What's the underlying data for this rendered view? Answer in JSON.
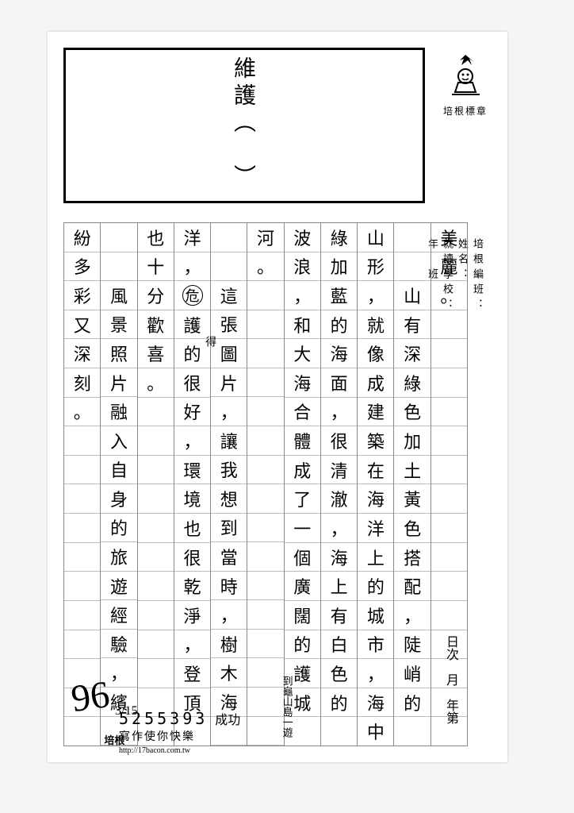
{
  "title": "維護（　）",
  "stamp_label": "培根標章",
  "header_labels": [
    "培根編班：",
    "姓名：",
    "就讀學校：",
    "年　班"
  ],
  "side_date": "日次　月　年第",
  "columns": [
    [
      "美",
      "麗",
      "。",
      "",
      "",
      "",
      "",
      "",
      "",
      "",
      "",
      "",
      "",
      "",
      "",
      "",
      "",
      ""
    ],
    [
      "",
      "",
      "山",
      "有",
      "深",
      "綠",
      "色",
      "加",
      "土",
      "黃",
      "色",
      "搭",
      "配",
      "，",
      "陡",
      "峭",
      "的",
      ""
    ],
    [
      "山",
      "形",
      "，",
      "就",
      "像",
      "成",
      "建",
      "築",
      "在",
      "海",
      "洋",
      "上",
      "的",
      "城",
      "市",
      "，",
      "海",
      "中"
    ],
    [
      "綠",
      "加",
      "藍",
      "的",
      "海",
      "面",
      "，",
      "很",
      "清",
      "澈",
      "，",
      "海",
      "上",
      "有",
      "白",
      "色",
      "的",
      ""
    ],
    [
      "波",
      "浪",
      "，",
      "和",
      "大",
      "海",
      "合",
      "體",
      "成",
      "了",
      "一",
      "個",
      "廣",
      "闊",
      "的",
      "護",
      "城",
      ""
    ],
    [
      "河",
      "。",
      "",
      "",
      "",
      "",
      "",
      "",
      "",
      "",
      "",
      "",
      "",
      "",
      "",
      "",
      "",
      ""
    ],
    [
      "",
      "",
      "這",
      "張",
      "圖",
      "片",
      "，",
      "讓",
      "我",
      "想",
      "到",
      "當",
      "時",
      "，",
      "樹",
      "木",
      "海",
      ""
    ],
    [
      "洋",
      "，",
      "危",
      "護",
      "的",
      "很",
      "好",
      "，",
      "環",
      "境",
      "也",
      "很",
      "乾",
      "淨",
      "，",
      "登",
      "頂",
      ""
    ],
    [
      "也",
      "十",
      "分",
      "歡",
      "喜",
      "。",
      "",
      "",
      "",
      "",
      "",
      "",
      "",
      "",
      "",
      "",
      "",
      ""
    ],
    [
      "",
      "",
      "風",
      "景",
      "照",
      "片",
      "融",
      "入",
      "自",
      "身",
      "的",
      "旅",
      "遊",
      "經",
      "驗",
      "，",
      "繽",
      ""
    ],
    [
      "紛",
      "多",
      "彩",
      "又",
      "深",
      "刻",
      "。",
      "",
      "",
      "",
      "",
      "",
      "",
      "",
      "",
      "",
      "",
      ""
    ]
  ],
  "annotations": {
    "col6_side": "到龜山島一遊",
    "col7_small": "得",
    "col9_peigen": "培根",
    "footer_success": "成功"
  },
  "footer": {
    "number": "5255393",
    "slogan": "寫作使你快樂",
    "url": "http://17bacon.com.tw"
  },
  "score": "96",
  "score_date": "3/15",
  "rows_per_col": 18,
  "colors": {
    "bg": "#f5f5f5",
    "paper": "#ffffff",
    "line": "#888888",
    "text": "#000000"
  }
}
